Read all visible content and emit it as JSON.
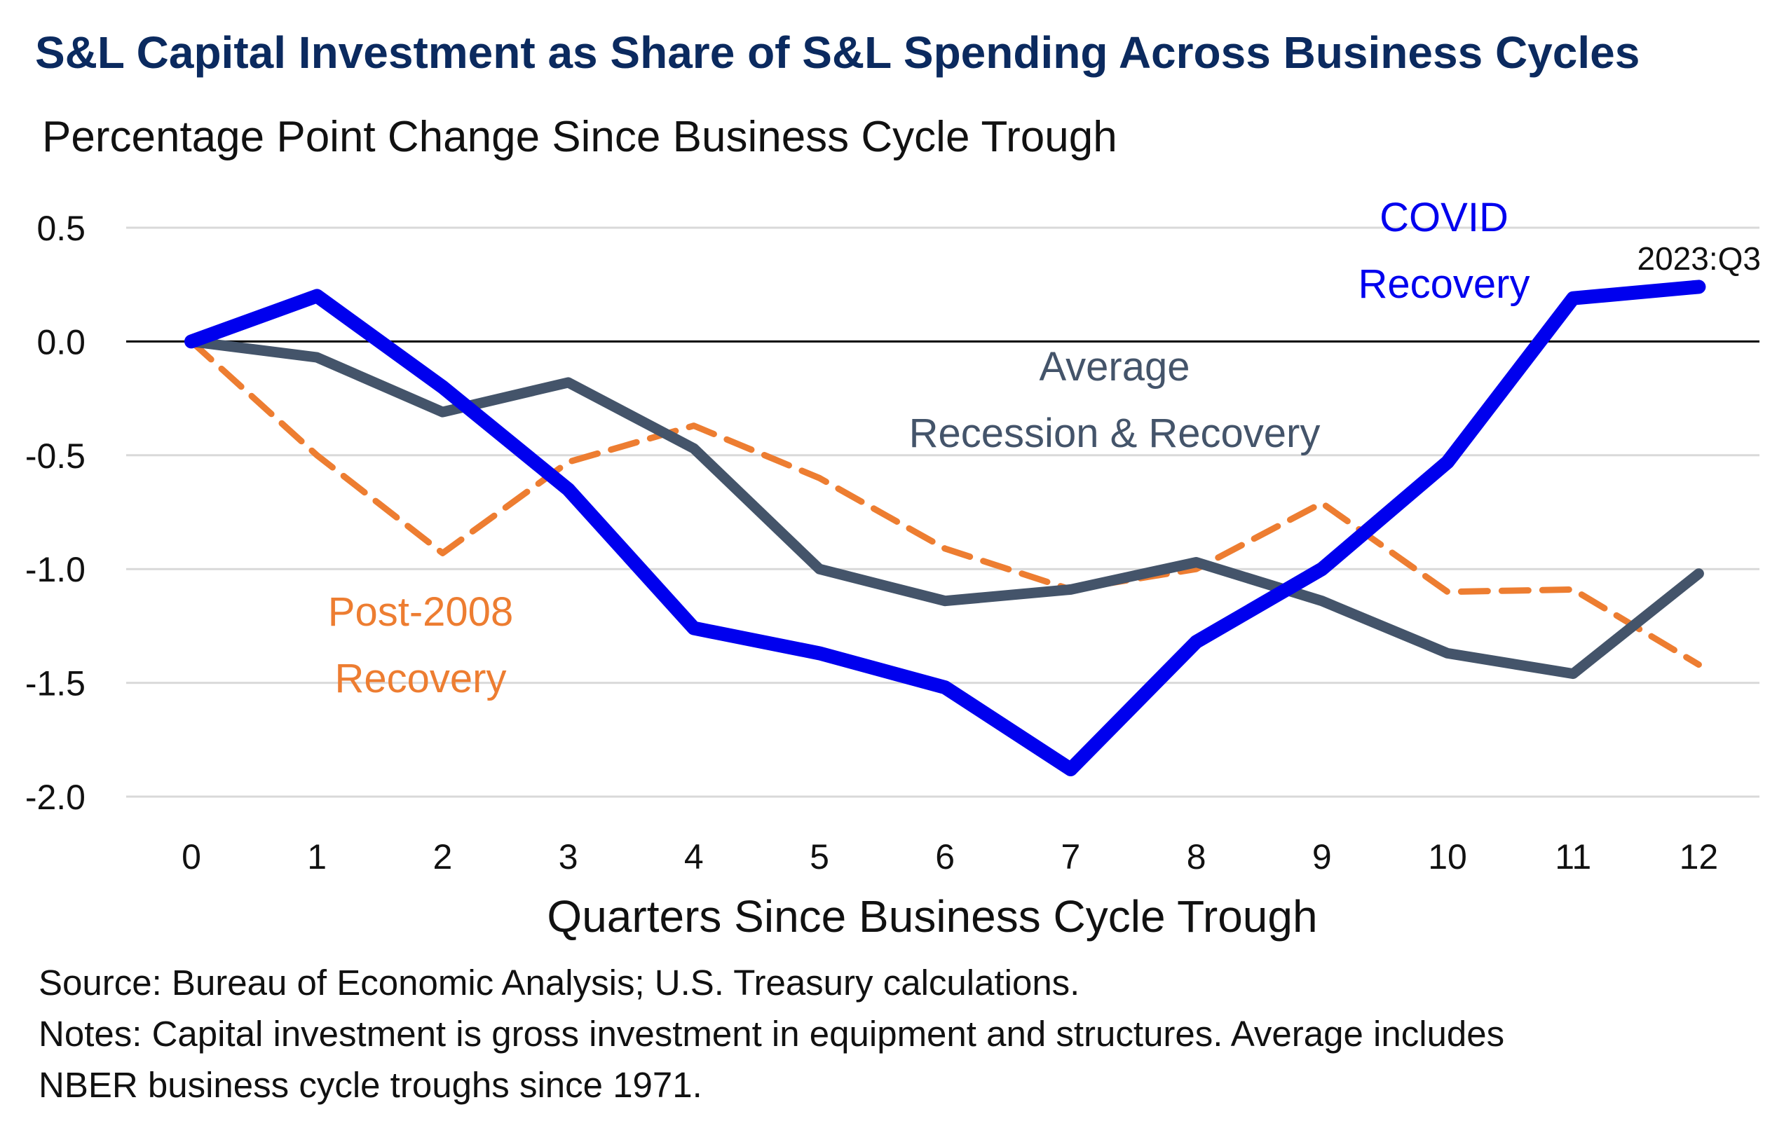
{
  "header": {
    "title": "S&L Capital Investment as Share of S&L Spending Across Business Cycles",
    "subtitle": "Percentage Point Change Since Business Cycle Trough"
  },
  "footer": {
    "source": "Source: Bureau of Economic Analysis; U.S. Treasury calculations.",
    "notes_line1": "Notes: Capital investment is gross investment in equipment and structures. Average includes",
    "notes_line2": "NBER business cycle troughs since 1971."
  },
  "chart_data": {
    "type": "line",
    "title": "S&L Capital Investment as Share of S&L Spending Across Business Cycles",
    "subtitle": "Percentage Point Change Since Business Cycle Trough",
    "xlabel": "Quarters Since Business Cycle Trough",
    "ylabel": "",
    "x": [
      0,
      1,
      2,
      3,
      4,
      5,
      6,
      7,
      8,
      9,
      10,
      11,
      12
    ],
    "x_tick_labels": [
      "0",
      "1",
      "2",
      "3",
      "4",
      "5",
      "6",
      "7",
      "8",
      "9",
      "10",
      "11",
      "12"
    ],
    "y_tick_labels": [
      "0.5",
      "0.0",
      "-0.5",
      "-1.0",
      "-1.5",
      "-2.0"
    ],
    "y_ticks": [
      0.5,
      0.0,
      -0.5,
      -1.0,
      -1.5,
      -2.0
    ],
    "ylim": [
      -2.0,
      0.5
    ],
    "grid": "horizontal",
    "legend": "none (direct labels)",
    "series": [
      {
        "key": "covid",
        "label_lines": [
          "COVID",
          "Recovery"
        ],
        "color": "#0000ee",
        "style": "solid-thick",
        "values": [
          0.0,
          0.2,
          -0.2,
          -0.65,
          -1.26,
          -1.37,
          -1.52,
          -1.88,
          -1.32,
          -1.0,
          -0.53,
          0.19,
          0.24
        ]
      },
      {
        "key": "average",
        "label_lines": [
          "Average",
          "Recession & Recovery"
        ],
        "color": "#44546a",
        "style": "solid",
        "values": [
          0.0,
          -0.07,
          -0.31,
          -0.18,
          -0.47,
          -1.0,
          -1.14,
          -1.09,
          -0.97,
          -1.14,
          -1.37,
          -1.46,
          -1.02
        ]
      },
      {
        "key": "post2008",
        "label_lines": [
          "Post-2008",
          "Recovery"
        ],
        "color": "#ed7d31",
        "style": "dashed",
        "values": [
          0.0,
          -0.5,
          -0.93,
          -0.53,
          -0.37,
          -0.6,
          -0.91,
          -1.09,
          -1.0,
          -0.71,
          -1.1,
          -1.09,
          -1.42
        ]
      }
    ],
    "annotations": [
      {
        "text": "2023:Q3",
        "at_x": 12,
        "series": "covid"
      }
    ]
  }
}
